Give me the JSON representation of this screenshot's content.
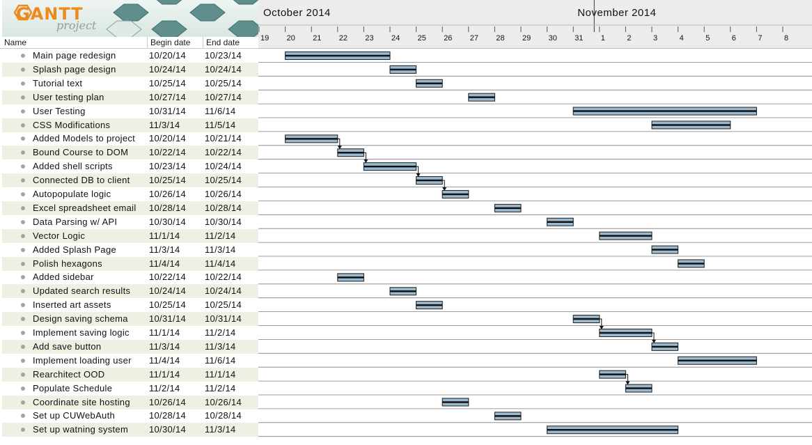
{
  "logo": {
    "title": "GANTT",
    "subtitle": "project"
  },
  "table_header": {
    "name": "Name",
    "begin": "Begin date",
    "end": "End date"
  },
  "months": [
    {
      "label": "October 2014",
      "day": 19
    },
    {
      "label": "November 2014",
      "day": 31
    }
  ],
  "days": [
    "19",
    "20",
    "21",
    "22",
    "23",
    "24",
    "25",
    "26",
    "27",
    "28",
    "29",
    "30",
    "31",
    "1",
    "2",
    "3",
    "4",
    "5",
    "6",
    "7",
    "8"
  ],
  "tasks": [
    {
      "name": "Main page redesign",
      "begin": "10/20/14",
      "end": "10/23/14",
      "start": 20,
      "finish": 24
    },
    {
      "name": "Splash page design",
      "begin": "10/24/14",
      "end": "10/24/14",
      "start": 24,
      "finish": 25
    },
    {
      "name": "Tutorial text",
      "begin": "10/25/14",
      "end": "10/25/14",
      "start": 25,
      "finish": 26
    },
    {
      "name": "User testing plan",
      "begin": "10/27/14",
      "end": "10/27/14",
      "start": 27,
      "finish": 28
    },
    {
      "name": "User Testing",
      "begin": "10/31/14",
      "end": "11/6/14",
      "start": 31,
      "finish": 38
    },
    {
      "name": "CSS Modifications",
      "begin": "11/3/14",
      "end": "11/5/14",
      "start": 34,
      "finish": 37
    },
    {
      "name": "Added Models to project",
      "begin": "10/20/14",
      "end": "10/21/14",
      "start": 20,
      "finish": 22
    },
    {
      "name": "Bound Course to DOM",
      "begin": "10/22/14",
      "end": "10/22/14",
      "start": 22,
      "finish": 23
    },
    {
      "name": "Added shell scripts",
      "begin": "10/23/14",
      "end": "10/24/14",
      "start": 23,
      "finish": 25
    },
    {
      "name": "Connected DB to client",
      "begin": "10/25/14",
      "end": "10/25/14",
      "start": 25,
      "finish": 26
    },
    {
      "name": "Autopopulate logic",
      "begin": "10/26/14",
      "end": "10/26/14",
      "start": 26,
      "finish": 27
    },
    {
      "name": "Excel spreadsheet email",
      "begin": "10/28/14",
      "end": "10/28/14",
      "start": 28,
      "finish": 29
    },
    {
      "name": "Data Parsing w/ API",
      "begin": "10/30/14",
      "end": "10/30/14",
      "start": 30,
      "finish": 31
    },
    {
      "name": "Vector Logic",
      "begin": "11/1/14",
      "end": "11/2/14",
      "start": 32,
      "finish": 34
    },
    {
      "name": "Added Splash Page",
      "begin": "11/3/14",
      "end": "11/3/14",
      "start": 34,
      "finish": 35
    },
    {
      "name": "Polish hexagons",
      "begin": "11/4/14",
      "end": "11/4/14",
      "start": 35,
      "finish": 36
    },
    {
      "name": "Added sidebar",
      "begin": "10/22/14",
      "end": "10/22/14",
      "start": 22,
      "finish": 23
    },
    {
      "name": "Updated search results",
      "begin": "10/24/14",
      "end": "10/24/14",
      "start": 24,
      "finish": 25
    },
    {
      "name": "Inserted art assets",
      "begin": "10/25/14",
      "end": "10/25/14",
      "start": 25,
      "finish": 26
    },
    {
      "name": "Design saving schema",
      "begin": "10/31/14",
      "end": "10/31/14",
      "start": 31,
      "finish": 32
    },
    {
      "name": "Implement saving logic",
      "begin": "11/1/14",
      "end": "11/2/14",
      "start": 32,
      "finish": 34
    },
    {
      "name": "Add save button",
      "begin": "11/3/14",
      "end": "11/3/14",
      "start": 34,
      "finish": 35
    },
    {
      "name": "Implement loading user",
      "begin": "11/4/14",
      "end": "11/6/14",
      "start": 35,
      "finish": 38
    },
    {
      "name": "Rearchitect OOD",
      "begin": "11/1/14",
      "end": "11/1/14",
      "start": 32,
      "finish": 33
    },
    {
      "name": "Populate Schedule",
      "begin": "11/2/14",
      "end": "11/2/14",
      "start": 33,
      "finish": 34
    },
    {
      "name": "Coordinate site hosting",
      "begin": "10/26/14",
      "end": "10/26/14",
      "start": 26,
      "finish": 27
    },
    {
      "name": "Set up CUWebAuth",
      "begin": "10/28/14",
      "end": "10/28/14",
      "start": 28,
      "finish": 29
    },
    {
      "name": "Set up watning system",
      "begin": "10/30/14",
      "end": "11/3/14",
      "start": 30,
      "finish": 35
    }
  ],
  "dependencies": [
    [
      6,
      7
    ],
    [
      7,
      8
    ],
    [
      8,
      9
    ],
    [
      9,
      10
    ],
    [
      19,
      20
    ],
    [
      20,
      21
    ],
    [
      23,
      24
    ]
  ],
  "colors": {
    "bar_fill": "#9ab9cf",
    "bar_border": "#1b1b1b",
    "row_alt": "#efefe4",
    "logo_orange": "#ee8a1c"
  }
}
